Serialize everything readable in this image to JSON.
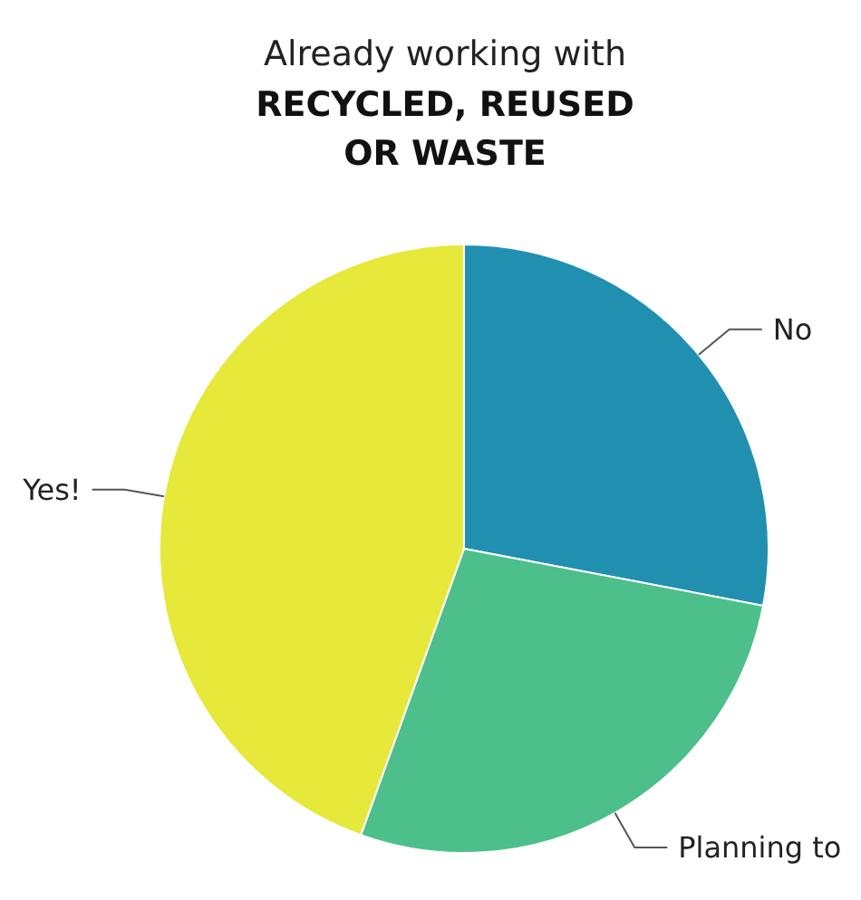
{
  "chart_data": {
    "type": "pie",
    "title": "Already working with",
    "subtitle": "RECYCLED, REUSED OR WASTE",
    "categories": [
      "No",
      "Planning to",
      "Yes!"
    ],
    "values": [
      28,
      27.5,
      44.5
    ],
    "colors": [
      "#2190b0",
      "#4cbf8a",
      "#e6e83a"
    ]
  }
}
